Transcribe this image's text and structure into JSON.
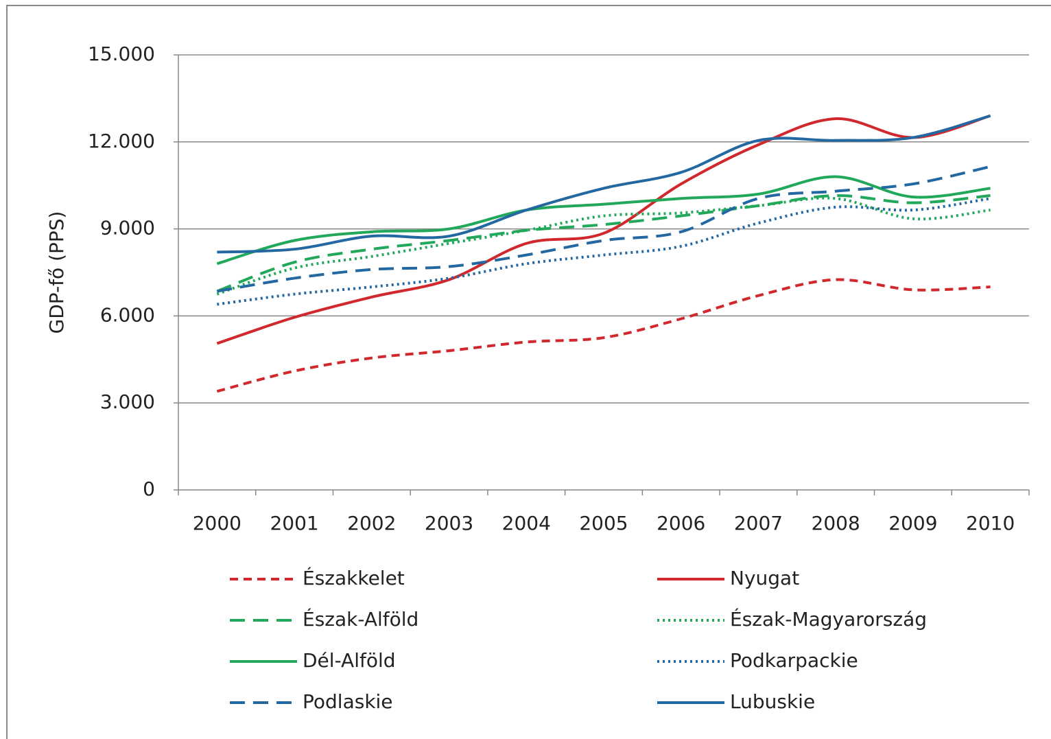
{
  "chart_data": {
    "type": "line",
    "y_label": "GDP-fő (PPS)",
    "categories": [
      "2000",
      "2001",
      "2002",
      "2003",
      "2004",
      "2005",
      "2006",
      "2007",
      "2008",
      "2009",
      "2010"
    ],
    "ylim": [
      0,
      15000
    ],
    "yticks": [
      0,
      {
        "value": 3000,
        "label": "3.000"
      },
      {
        "value": 6000,
        "label": "6.000"
      },
      {
        "value": 9000,
        "label": "9.000"
      },
      {
        "value": 12000,
        "label": "12.000"
      },
      {
        "value": 15000,
        "label": "15.000"
      }
    ],
    "grid": true,
    "legend": "bottom",
    "series": [
      {
        "name": "Északkelet",
        "color": "#d0282c",
        "dash": "dashed",
        "values": [
          3400,
          4100,
          4550,
          4800,
          5100,
          5250,
          5900,
          6700,
          7250,
          6900,
          7000
        ]
      },
      {
        "name": "Nyugat",
        "color": "#d0282c",
        "dash": "solid",
        "values": [
          5050,
          5950,
          6650,
          7250,
          8500,
          8850,
          10550,
          11900,
          12800,
          12150,
          12900
        ]
      },
      {
        "name": "Észak-Alföld",
        "color": "#22a85a",
        "dash": "longdash",
        "values": [
          6850,
          7850,
          8300,
          8600,
          8950,
          9150,
          9450,
          9800,
          10150,
          9900,
          10150
        ]
      },
      {
        "name": "Észak-Magyarország",
        "color": "#22a85a",
        "dash": "dotted",
        "values": [
          6750,
          7650,
          8050,
          8500,
          8950,
          9450,
          9550,
          9800,
          10050,
          9350,
          9650
        ]
      },
      {
        "name": "Dél-Alföld",
        "color": "#22a85a",
        "dash": "solid",
        "values": [
          7800,
          8600,
          8900,
          9000,
          9650,
          9850,
          10050,
          10200,
          10800,
          10100,
          10400
        ]
      },
      {
        "name": "Podkarpackie",
        "color": "#2468a2",
        "dash": "dotted",
        "values": [
          6400,
          6750,
          7000,
          7300,
          7800,
          8100,
          8400,
          9200,
          9750,
          9650,
          10050
        ]
      },
      {
        "name": "Podlaskie",
        "color": "#2468a2",
        "dash": "longdash",
        "values": [
          6850,
          7300,
          7600,
          7700,
          8100,
          8600,
          8900,
          10050,
          10300,
          10550,
          11150
        ]
      },
      {
        "name": "Lubuskie",
        "color": "#2468a2",
        "dash": "solid",
        "values": [
          8200,
          8300,
          8750,
          8750,
          9650,
          10400,
          10950,
          12050,
          12050,
          12150,
          12900
        ]
      }
    ]
  }
}
